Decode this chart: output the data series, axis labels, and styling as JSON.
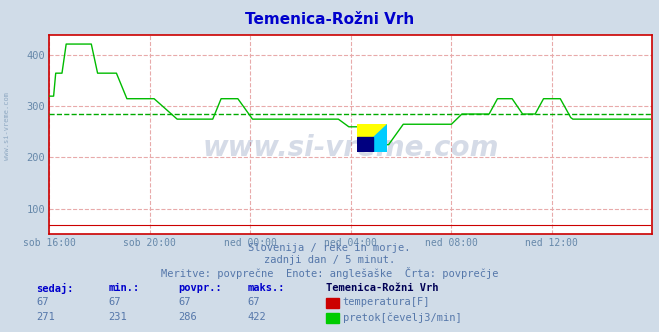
{
  "title": "Temenica-Rožni Vrh",
  "title_color": "#0000cc",
  "bg_color": "#d0dce8",
  "plot_bg_color": "#ffffff",
  "grid_color": "#e8aaaa",
  "grid_style": "--",
  "tick_color": "#6688aa",
  "ylim": [
    50,
    440
  ],
  "xlim": [
    0,
    288
  ],
  "avg_line_value": 286,
  "avg_line_color": "#00aa00",
  "avg_line_style": "--",
  "flow_color": "#00bb00",
  "temp_color": "#cc0000",
  "axis_color": "#cc0000",
  "subtitle_lines": [
    "Slovenija / reke in morje.",
    "zadnji dan / 5 minut.",
    "Meritve: povprečne  Enote: anglešaške  Črta: povprečje"
  ],
  "subtitle_color": "#5577aa",
  "table_headers": [
    "sedaj:",
    "min.:",
    "povpr.:",
    "maks.:"
  ],
  "table_header_color": "#0000cc",
  "station_name": "Temenica-Rožni Vrh",
  "station_name_color": "#000055",
  "rows": [
    {
      "sedaj": "67",
      "min": "67",
      "povpr": "67",
      "maks": "67",
      "color": "#cc0000",
      "label": "temperatura[F]"
    },
    {
      "sedaj": "271",
      "min": "231",
      "povpr": "286",
      "maks": "422",
      "color": "#00cc00",
      "label": "pretok[čevelj3/min]"
    }
  ],
  "xtick_labels": [
    "sob 16:00",
    "sob 20:00",
    "ned 00:00",
    "ned 04:00",
    "ned 08:00",
    "ned 12:00"
  ],
  "xtick_positions": [
    0,
    48,
    96,
    144,
    192,
    240
  ],
  "watermark": "www.si-vreme.com",
  "watermark_color": "#1a3a7a",
  "watermark_alpha": 0.18,
  "left_text": "www.si-vreme.com",
  "left_text_color": "#6688aa",
  "ylabel_ticks": [
    100,
    200,
    300,
    400
  ]
}
